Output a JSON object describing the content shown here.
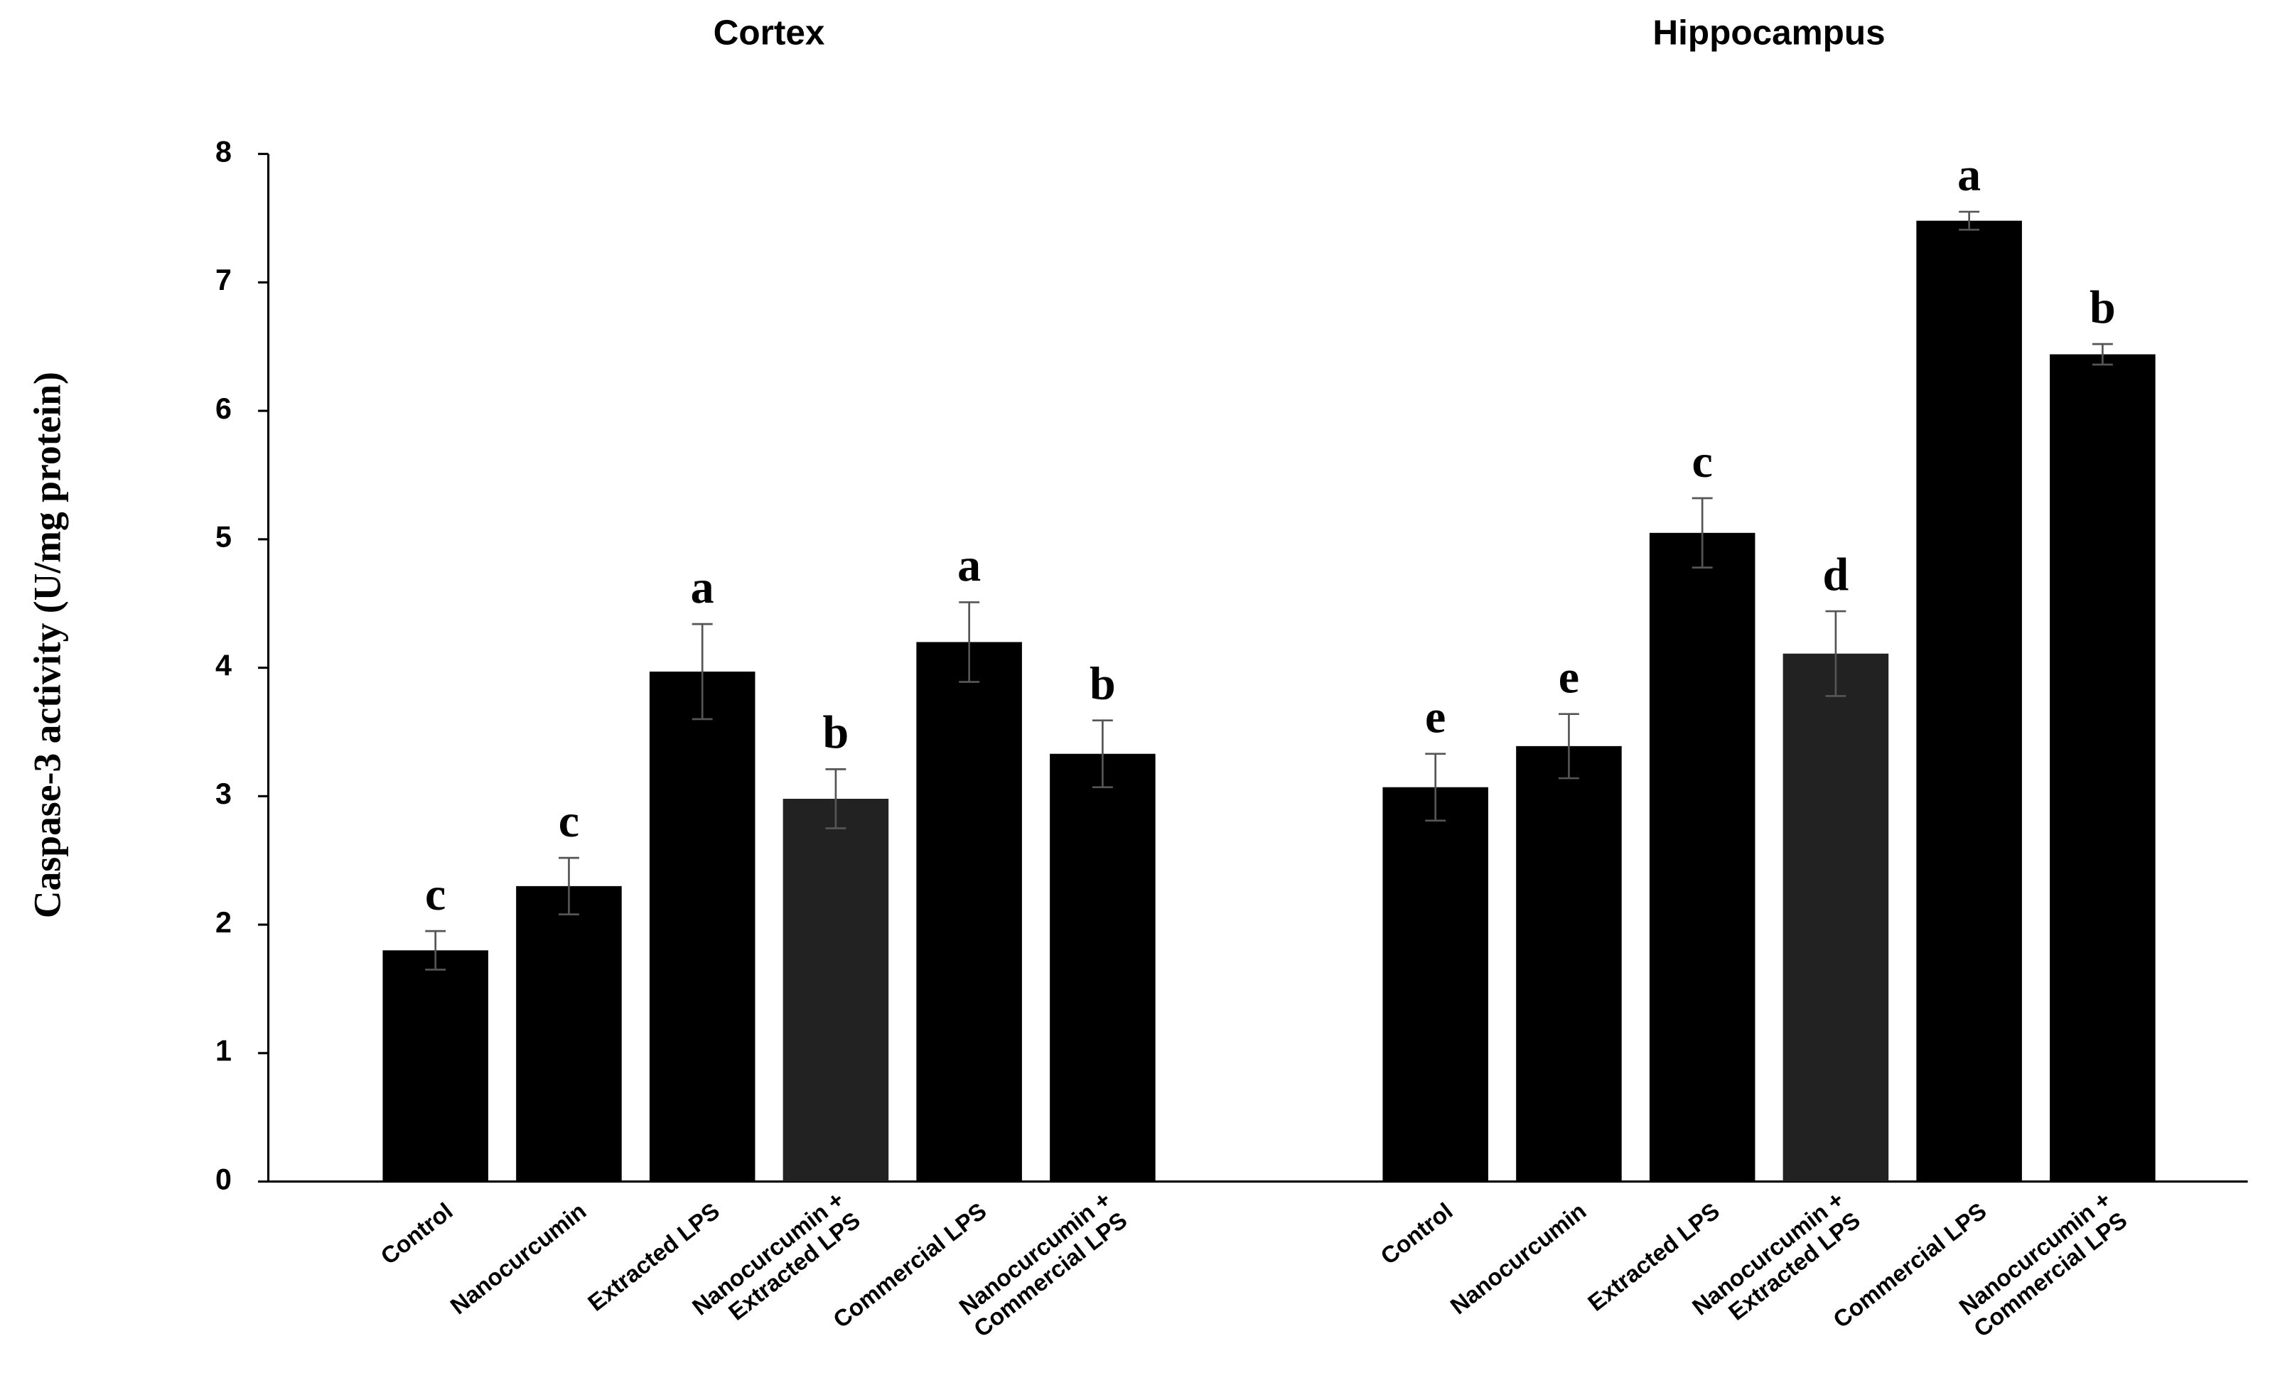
{
  "chart_data": {
    "type": "bar",
    "ylabel": "Caspase-3  activity (U/mg protein)",
    "ylim": [
      0,
      8
    ],
    "yticks": [
      0,
      1,
      2,
      3,
      4,
      5,
      6,
      7,
      8
    ],
    "groups": [
      {
        "title": "Cortex",
        "categories": [
          "Control",
          "Nanocurcumin",
          "Extracted LPS",
          "Nanocurcumin +\nExtracted LPS",
          "Commercial LPS",
          "Nanocurcumin +\nCommercial LPS"
        ],
        "values": [
          1.8,
          2.3,
          3.97,
          2.98,
          4.2,
          3.33
        ],
        "errors": [
          0.15,
          0.22,
          0.37,
          0.23,
          0.31,
          0.26
        ],
        "letters": [
          "c",
          "c",
          "a",
          "b",
          "a",
          "b"
        ],
        "colors": [
          "#000000",
          "#000000",
          "#000000",
          "#222222",
          "#000000",
          "#000000"
        ]
      },
      {
        "title": "Hippocampus",
        "categories": [
          "Control",
          "Nanocurcumin",
          "Extracted LPS",
          "Nanocurcumin +\nExtracted LPS",
          "Commercial LPS",
          "Nanocurcumin +\nCommercial LPS"
        ],
        "values": [
          3.07,
          3.39,
          5.05,
          4.11,
          7.48,
          6.44
        ],
        "errors": [
          0.26,
          0.25,
          0.27,
          0.33,
          0.07,
          0.08
        ],
        "letters": [
          "e",
          "e",
          "c",
          "d",
          "a",
          "b"
        ],
        "colors": [
          "#000000",
          "#000000",
          "#000000",
          "#222222",
          "#000000",
          "#000000"
        ]
      }
    ]
  }
}
